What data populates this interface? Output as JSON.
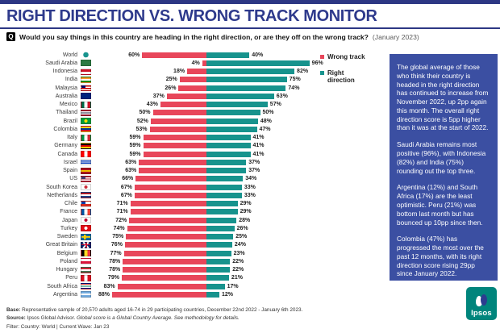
{
  "page": {
    "title": "RIGHT DIRECTION VS. WRONG TRACK MONITOR",
    "q_badge": "Q",
    "question": "Would you say things in this country are heading in the right direction, or are they off on the wrong track?",
    "date_note": "(January 2023)"
  },
  "colors": {
    "wrong": "#e8465a",
    "right": "#17938d",
    "title_blue": "#2e3a8c",
    "panel_blue": "#3b4fa2",
    "logo_teal": "#00857c"
  },
  "chart_data": {
    "type": "bar",
    "variant": "horizontal-diverging",
    "title": "Right direction vs. wrong track by country, January 2023",
    "xlabel": "",
    "ylabel": "",
    "value_suffix": "%",
    "xlim": [
      0,
      100
    ],
    "grid": false,
    "legend_position": "top-right",
    "categories": [
      "World",
      "Saudi Arabia",
      "Indonesia",
      "India",
      "Malaysia",
      "Australia",
      "Mexico",
      "Thailand",
      "Brazil",
      "Colombia",
      "Italy",
      "Germany",
      "Canada",
      "Israel",
      "Spain",
      "US",
      "South Korea",
      "Netherlands",
      "Chile",
      "France",
      "Japan",
      "Turkey",
      "Sweden",
      "Great Britain",
      "Belgium",
      "Poland",
      "Hungary",
      "Peru",
      "South Africa",
      "Argentina"
    ],
    "series": [
      {
        "name": "Wrong track",
        "color": "#e8465a",
        "values": [
          60,
          4,
          18,
          25,
          26,
          37,
          43,
          50,
          52,
          53,
          59,
          59,
          59,
          63,
          63,
          66,
          67,
          67,
          71,
          71,
          72,
          74,
          75,
          76,
          77,
          78,
          78,
          79,
          83,
          88
        ]
      },
      {
        "name": "Right direction",
        "color": "#17938d",
        "values": [
          40,
          96,
          82,
          75,
          74,
          63,
          57,
          50,
          48,
          47,
          41,
          41,
          41,
          37,
          37,
          34,
          33,
          33,
          29,
          29,
          28,
          26,
          25,
          24,
          23,
          22,
          22,
          21,
          17,
          12
        ]
      }
    ]
  },
  "legend": {
    "wrong_label": "Wrong track",
    "right_label": "Right direction"
  },
  "flags": [
    {
      "country": "World",
      "kind": "globe",
      "c": [
        "#17938d"
      ]
    },
    {
      "country": "Saudi Arabia",
      "kind": "h",
      "c": [
        "#2d7a43"
      ]
    },
    {
      "country": "Indonesia",
      "kind": "h",
      "c": [
        "#ce1126",
        "#ffffff"
      ]
    },
    {
      "country": "India",
      "kind": "h",
      "c": [
        "#ff9933",
        "#ffffff",
        "#138808"
      ]
    },
    {
      "country": "Malaysia",
      "kind": "canton",
      "c": [
        "#cc0001",
        "#ffffff",
        "#cc0001",
        "#ffffff",
        "#010066"
      ]
    },
    {
      "country": "Australia",
      "kind": "h",
      "c": [
        "#00247d"
      ]
    },
    {
      "country": "Mexico",
      "kind": "v",
      "c": [
        "#006847",
        "#ffffff",
        "#ce1126"
      ]
    },
    {
      "country": "Thailand",
      "kind": "h",
      "c": [
        "#a51931",
        "#f4f5f8",
        "#2d2a4a",
        "#f4f5f8",
        "#a51931"
      ]
    },
    {
      "country": "Brazil",
      "kind": "dot",
      "c": [
        "#009c3b",
        "#ffdf00"
      ]
    },
    {
      "country": "Colombia",
      "kind": "h",
      "c": [
        "#fcd116",
        "#003893",
        "#ce1126"
      ]
    },
    {
      "country": "Italy",
      "kind": "v",
      "c": [
        "#009246",
        "#ffffff",
        "#ce2b37"
      ]
    },
    {
      "country": "Germany",
      "kind": "h",
      "c": [
        "#000000",
        "#dd0000",
        "#ffce00"
      ]
    },
    {
      "country": "Canada",
      "kind": "v",
      "c": [
        "#ff0000",
        "#ffffff",
        "#ff0000"
      ]
    },
    {
      "country": "Israel",
      "kind": "h",
      "c": [
        "#ffffff",
        "#0038b8",
        "#ffffff",
        "#0038b8",
        "#ffffff"
      ]
    },
    {
      "country": "Spain",
      "kind": "h",
      "c": [
        "#aa151b",
        "#f1bf00",
        "#aa151b"
      ]
    },
    {
      "country": "US",
      "kind": "canton",
      "c": [
        "#b22234",
        "#ffffff",
        "#b22234",
        "#ffffff",
        "#b22234",
        "#3c3b6e"
      ]
    },
    {
      "country": "South Korea",
      "kind": "dot",
      "c": [
        "#ffffff",
        "#cd2e3a"
      ]
    },
    {
      "country": "Netherlands",
      "kind": "h",
      "c": [
        "#ae1c28",
        "#ffffff",
        "#21468b"
      ]
    },
    {
      "country": "Chile",
      "kind": "canton",
      "c": [
        "#ffffff",
        "#d52b1e",
        "#0039a6"
      ]
    },
    {
      "country": "France",
      "kind": "v",
      "c": [
        "#0055a4",
        "#ffffff",
        "#ef4135"
      ]
    },
    {
      "country": "Japan",
      "kind": "dot",
      "c": [
        "#ffffff",
        "#bc002d"
      ]
    },
    {
      "country": "Turkey",
      "kind": "dot",
      "c": [
        "#e30a17",
        "#ffffff"
      ]
    },
    {
      "country": "Sweden",
      "kind": "cross",
      "c": [
        "#006aa7",
        "#fecc00"
      ]
    },
    {
      "country": "Great Britain",
      "kind": "uk",
      "c": [
        "#012169",
        "#ffffff",
        "#c8102e"
      ]
    },
    {
      "country": "Belgium",
      "kind": "v",
      "c": [
        "#000000",
        "#fdda24",
        "#ef3340"
      ]
    },
    {
      "country": "Poland",
      "kind": "h",
      "c": [
        "#ffffff",
        "#dc143c"
      ]
    },
    {
      "country": "Hungary",
      "kind": "h",
      "c": [
        "#ce2939",
        "#ffffff",
        "#477050"
      ]
    },
    {
      "country": "Peru",
      "kind": "v",
      "c": [
        "#d91023",
        "#ffffff",
        "#d91023"
      ]
    },
    {
      "country": "South Africa",
      "kind": "h",
      "c": [
        "#de3831",
        "#ffffff",
        "#007a4d",
        "#ffffff",
        "#001489"
      ]
    },
    {
      "country": "Argentina",
      "kind": "h",
      "c": [
        "#74acdf",
        "#ffffff",
        "#74acdf"
      ]
    }
  ],
  "insight_panel": {
    "paragraphs": [
      "The global average of those who think their country is headed in the right direction has continued to increase from November 2022, up 2pp again this month. The overall right direction score is 5pp higher than it was at the start of 2022.",
      "Saudi Arabia remains most positive (96%), with Indonesia (82%) and India (75%) rounding out the top three.",
      "Argentina (12%) and South Africa (17%) are the least optimistic. Peru (21%) was bottom last month but has bounced up 10pp since then.",
      "Colombia (47%) has progressed the most over the past 12 months, with its right direction score rising 29pp since January 2022."
    ]
  },
  "footer": {
    "base_label": "Base:",
    "base_text": " Representative sample of 20,570 adults aged 16-74 in 29 participating countries, December 22nd 2022 - January 6th 2023.",
    "source_label": "Source:",
    "source_text": " Ipsos Global Advisor. ",
    "source_italic": "Global score is a Global Country Average. See methodology for details.",
    "filter_text": "Filter: Country: World | Current Wave: Jan 23"
  },
  "logo": {
    "text": "Ipsos"
  }
}
